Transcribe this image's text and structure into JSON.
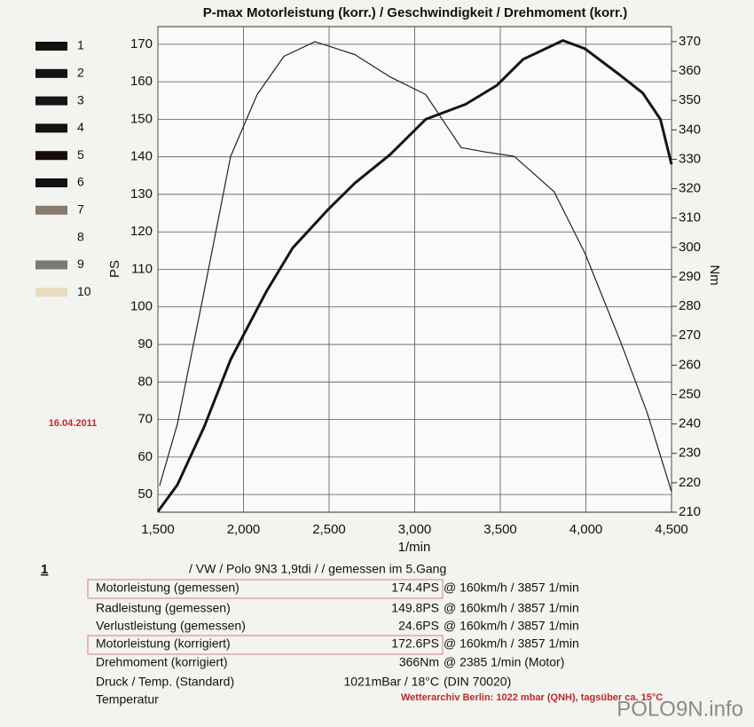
{
  "chart_data": {
    "type": "line",
    "title": "P-max Motorleistung (korr.) / Geschwindigkeit / Drehmoment (korr.)",
    "x_label": "1/min",
    "y_label": "PS",
    "y2_label": "Nm",
    "xlim": [
      1500,
      4500
    ],
    "xticks": [
      {
        "value": 1500,
        "label": "1,500"
      },
      {
        "value": 2000,
        "label": "2,000"
      },
      {
        "value": 2500,
        "label": "2,500"
      },
      {
        "value": 3000,
        "label": "3,000"
      },
      {
        "value": 3500,
        "label": "3,500"
      },
      {
        "value": 4000,
        "label": "4,000"
      },
      {
        "value": 4500,
        "label": "4,500"
      }
    ],
    "ylim": [
      45.3,
      174.7
    ],
    "yticks": [
      50,
      60,
      70,
      80,
      90,
      100,
      110,
      120,
      130,
      140,
      150,
      160,
      170
    ],
    "y2lim": [
      210,
      375.1
    ],
    "y2ticks": [
      210,
      220,
      230,
      240,
      250,
      260,
      270,
      280,
      290,
      300,
      310,
      320,
      330,
      340,
      350,
      360,
      370
    ],
    "grid": true,
    "series": [
      {
        "name": "Motorleistung",
        "color": "#151515",
        "line_width": 3,
        "x": [
          1500,
          1614,
          1770,
          1925,
          2132,
          2287,
          2495,
          2650,
          2857,
          3064,
          3297,
          3478,
          3633,
          3866,
          3995,
          4202,
          4332,
          4435,
          4500
        ],
        "values": [
          45.5,
          52.6,
          68,
          86,
          104,
          115.7,
          126,
          133,
          140.6,
          150,
          154,
          159,
          166,
          171,
          168.8,
          161.7,
          157,
          150,
          138
        ]
      },
      {
        "name": "Drehmoment",
        "color": "#222222",
        "line_width": 1.2,
        "axis": "y2",
        "x": [
          1510,
          1614,
          1770,
          1925,
          2080,
          2236,
          2417,
          2650,
          2857,
          3064,
          3271,
          3400,
          3581,
          3814,
          3995,
          4202,
          4357,
          4500
        ],
        "values": [
          219,
          240,
          285,
          331,
          352,
          365,
          370,
          365.6,
          358,
          352,
          334,
          332.6,
          331,
          319,
          298,
          268,
          244,
          217
        ]
      }
    ]
  },
  "date": "16.04.2011",
  "legend": [
    {
      "label": "1",
      "color": "#111"
    },
    {
      "label": "2",
      "color": "#111"
    },
    {
      "label": "3",
      "color": "#151515"
    },
    {
      "label": "4",
      "color": "#111"
    },
    {
      "label": "5",
      "color": "#180c0c"
    },
    {
      "label": "6",
      "color": "#111"
    },
    {
      "label": "7",
      "color": "#8a7a6a"
    },
    {
      "label": "8",
      "color": "none"
    },
    {
      "label": "9",
      "color": "#7a7a72"
    },
    {
      "label": "10",
      "color": "#e8dcc0"
    }
  ],
  "report": {
    "number": "1",
    "vehicle": "/ VW / Polo 9N3 1,9tdi /  / gemessen im 5.Gang",
    "rows": [
      [
        "Motorleistung (gemessen)",
        "174.4PS",
        "@ 160km/h / 3857 1/min"
      ],
      [
        "Radleistung (gemessen)",
        "149.8PS",
        "@ 160km/h / 3857 1/min"
      ],
      [
        "Verlustleistung (gemessen)",
        "24.6PS",
        "@ 160km/h / 3857 1/min"
      ],
      [
        "Motorleistung (korrigiert)",
        "172.6PS",
        "@ 160km/h / 3857 1/min"
      ],
      [
        "Drehmoment (korrigiert)",
        "366Nm",
        "@ 2385 1/min (Motor)"
      ],
      [
        "Druck / Temp. (Standard)",
        "1021mBar / 18°C",
        "(DIN 70020)"
      ],
      [
        "Temperatur",
        "",
        ""
      ]
    ],
    "weather": "Wetterarchiv Berlin: 1022 mbar (QNH), tagsüber ca. 15°C"
  },
  "watermark": "POLO9N.info"
}
